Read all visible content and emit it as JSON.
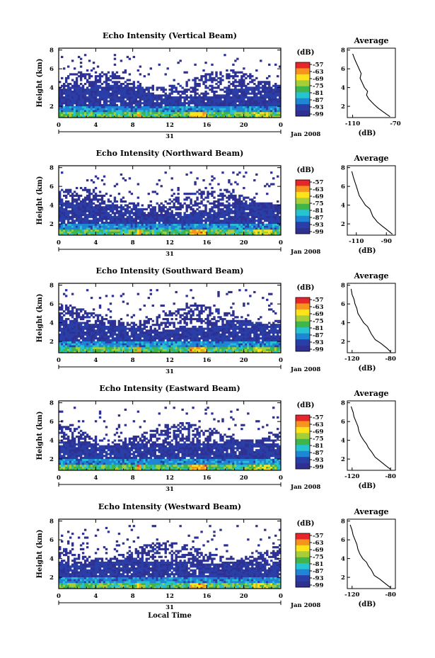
{
  "chart_data": {
    "type": "heatmap",
    "x_axis": {
      "label": "Local Time",
      "ticks": [
        "0",
        "4",
        "8",
        "12",
        "16",
        "20",
        "0"
      ],
      "day_label": "31",
      "date_label": "Jan 2008",
      "range_hours": [
        0,
        24
      ]
    },
    "y_axis": {
      "label": "Height (km)",
      "ticks": [
        "2",
        "4",
        "6",
        "8"
      ],
      "range_km": [
        0.8,
        8.2
      ]
    },
    "colorbar": {
      "unit": "(dB)",
      "ticks": [
        "-57",
        "-63",
        "-69",
        "-75",
        "-81",
        "-87",
        "-93",
        "-99"
      ],
      "colors": [
        "#e8252a",
        "#f7941d",
        "#ffe31a",
        "#a6ce39",
        "#3fb54a",
        "#27c3d1",
        "#1f86d6",
        "#2a3ea8",
        "#2e3192"
      ]
    },
    "panels": [
      {
        "title": "Echo Intensity (Vertical Beam)",
        "avg_xticks": [
          "-110",
          "-70"
        ],
        "avg_xrange": [
          -115,
          -70
        ],
        "avg_profile": [
          [
            0.9,
            -75
          ],
          [
            1.3,
            -80
          ],
          [
            1.8,
            -86
          ],
          [
            2.2,
            -90
          ],
          [
            2.8,
            -95
          ],
          [
            3.2,
            -97
          ],
          [
            3.6,
            -96
          ],
          [
            4.0,
            -99
          ],
          [
            4.5,
            -101
          ],
          [
            5.0,
            -103
          ],
          [
            5.5,
            -102
          ],
          [
            6.0,
            -104
          ],
          [
            6.5,
            -106
          ],
          [
            7.0,
            -108
          ],
          [
            7.6,
            -110
          ]
        ]
      },
      {
        "title": "Echo Intensity (Northward Beam)",
        "avg_xticks": [
          "-110",
          "-90"
        ],
        "avg_xrange": [
          -116,
          -84
        ],
        "avg_profile": [
          [
            0.9,
            -86
          ],
          [
            1.3,
            -89
          ],
          [
            1.8,
            -93
          ],
          [
            2.2,
            -96
          ],
          [
            2.8,
            -99
          ],
          [
            3.2,
            -100
          ],
          [
            3.6,
            -101
          ],
          [
            4.0,
            -104
          ],
          [
            4.5,
            -106
          ],
          [
            5.0,
            -108
          ],
          [
            5.5,
            -109
          ],
          [
            6.0,
            -110
          ],
          [
            6.5,
            -111
          ],
          [
            7.0,
            -112
          ],
          [
            7.6,
            -113
          ]
        ]
      },
      {
        "title": "Echo Intensity (Southward Beam)",
        "avg_xticks": [
          "-120",
          "-80"
        ],
        "avg_xrange": [
          -125,
          -75
        ],
        "avg_profile": [
          [
            0.9,
            -80
          ],
          [
            1.3,
            -84
          ],
          [
            1.8,
            -90
          ],
          [
            2.2,
            -96
          ],
          [
            2.8,
            -100
          ],
          [
            3.2,
            -102
          ],
          [
            3.6,
            -104
          ],
          [
            4.0,
            -108
          ],
          [
            4.5,
            -111
          ],
          [
            5.0,
            -114
          ],
          [
            5.5,
            -115
          ],
          [
            6.0,
            -117
          ],
          [
            6.5,
            -118
          ],
          [
            7.0,
            -120
          ],
          [
            7.6,
            -121
          ]
        ]
      },
      {
        "title": "Echo Intensity (Eastward Beam)",
        "avg_xticks": [
          "-120",
          "-80"
        ],
        "avg_xrange": [
          -125,
          -75
        ],
        "avg_profile": [
          [
            0.9,
            -80
          ],
          [
            1.3,
            -85
          ],
          [
            1.8,
            -91
          ],
          [
            2.2,
            -96
          ],
          [
            2.8,
            -100
          ],
          [
            3.2,
            -103
          ],
          [
            3.6,
            -105
          ],
          [
            4.0,
            -108
          ],
          [
            4.5,
            -111
          ],
          [
            5.0,
            -113
          ],
          [
            5.5,
            -114
          ],
          [
            6.0,
            -116
          ],
          [
            6.5,
            -118
          ],
          [
            7.0,
            -119
          ],
          [
            7.6,
            -121
          ]
        ]
      },
      {
        "title": "Echo Intensity (Westward Beam)",
        "avg_xticks": [
          "-120",
          "-80"
        ],
        "avg_xrange": [
          -125,
          -75
        ],
        "avg_profile": [
          [
            0.9,
            -80
          ],
          [
            1.3,
            -85
          ],
          [
            1.8,
            -91
          ],
          [
            2.2,
            -97
          ],
          [
            2.8,
            -100
          ],
          [
            3.2,
            -103
          ],
          [
            3.6,
            -105
          ],
          [
            4.0,
            -109
          ],
          [
            4.5,
            -112
          ],
          [
            5.0,
            -114
          ],
          [
            5.5,
            -115
          ],
          [
            6.0,
            -117
          ],
          [
            6.5,
            -119
          ],
          [
            7.0,
            -120
          ],
          [
            7.6,
            -122
          ]
        ]
      }
    ],
    "avg_title": "Average",
    "avg_xlabel": "(dB)",
    "avg_yticks": [
      "2",
      "4",
      "6",
      "8"
    ]
  }
}
